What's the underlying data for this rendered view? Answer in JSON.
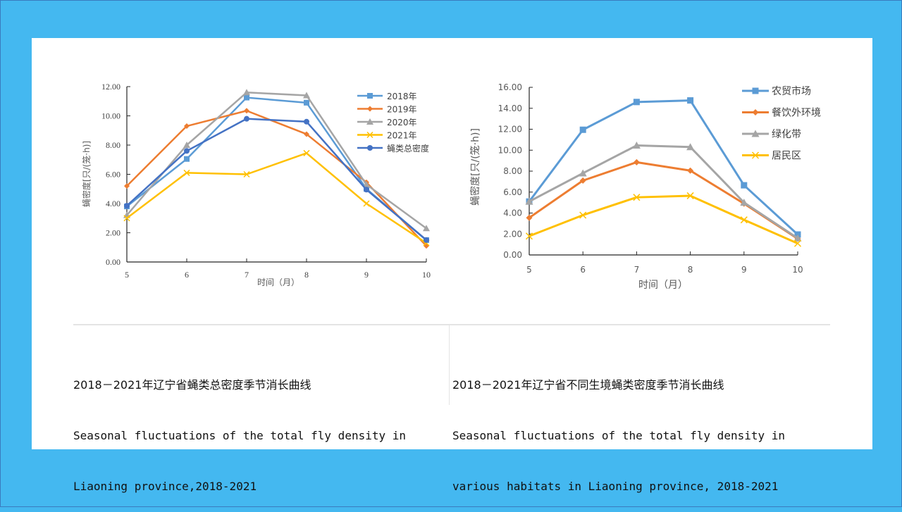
{
  "slide": {
    "background_color": "#44b8f0",
    "panel_color": "#ffffff"
  },
  "captions": [
    {
      "zh": "2018－2021年辽宁省蝇类总密度季节消长曲线",
      "en_line1": "Seasonal fluctuations of the total fly density in",
      "en_line2": "Liaoning province,2018-2021"
    },
    {
      "zh": "2018－2021年辽宁省不同生境蝇类密度季节消长曲线",
      "en_line1": "Seasonal fluctuations of the total fly density in",
      "en_line2": "various habitats in Liaoning province, 2018-2021"
    }
  ],
  "chart_data": [
    {
      "type": "line",
      "title": "",
      "xlabel": "时间（月）",
      "ylabel": "蝇密度[只/(笼·h)]",
      "x": [
        5,
        6,
        7,
        8,
        9,
        10
      ],
      "x_tick_labels": [
        "5",
        "6",
        "7",
        "8",
        "9",
        "10"
      ],
      "ylim": [
        0,
        12
      ],
      "y_ticks": [
        0,
        2,
        4,
        6,
        8,
        10,
        12
      ],
      "y_tick_labels": [
        "0.00",
        "2.00",
        "4.00",
        "6.00",
        "8.00",
        "10.00",
        "12.00"
      ],
      "grid": false,
      "legend_position": "top-right",
      "series": [
        {
          "name": "2018年",
          "color": "#5b9bd5",
          "marker": "square",
          "values": [
            3.8,
            7.05,
            11.25,
            10.9,
            5.0,
            1.5
          ]
        },
        {
          "name": "2019年",
          "color": "#ed7d31",
          "marker": "diamond",
          "values": [
            5.2,
            9.3,
            10.35,
            8.75,
            5.45,
            1.1
          ]
        },
        {
          "name": "2020年",
          "color": "#a5a5a5",
          "marker": "triangle",
          "values": [
            3.2,
            8.0,
            11.6,
            11.4,
            5.3,
            2.3
          ]
        },
        {
          "name": "2021年",
          "color": "#ffc000",
          "marker": "x",
          "values": [
            3.0,
            6.1,
            6.0,
            7.45,
            4.0,
            1.3
          ]
        },
        {
          "name": "蝇类总密度",
          "color": "#4472c4",
          "marker": "circle",
          "values": [
            3.85,
            7.6,
            9.8,
            9.6,
            4.95,
            1.5
          ]
        }
      ]
    },
    {
      "type": "line",
      "title": "",
      "xlabel": "时间（月）",
      "ylabel": "蝇密度[只/(笼·h)]",
      "x": [
        5,
        6,
        7,
        8,
        9,
        10
      ],
      "x_tick_labels": [
        "5",
        "6",
        "7",
        "8",
        "9",
        "10"
      ],
      "ylim": [
        0,
        16
      ],
      "y_ticks": [
        0,
        2,
        4,
        6,
        8,
        10,
        12,
        14,
        16
      ],
      "y_tick_labels": [
        "0.00",
        "2.00",
        "4.00",
        "6.00",
        "8.00",
        "10.00",
        "12.00",
        "14.00",
        "16.00"
      ],
      "grid": false,
      "legend_position": "top-right",
      "series": [
        {
          "name": "农贸市场",
          "color": "#5b9bd5",
          "marker": "square",
          "values": [
            5.1,
            11.95,
            14.6,
            14.75,
            6.65,
            1.95
          ]
        },
        {
          "name": "餐饮外环境",
          "color": "#ed7d31",
          "marker": "diamond",
          "values": [
            3.55,
            7.1,
            8.85,
            8.05,
            4.9,
            1.55
          ]
        },
        {
          "name": "绿化带",
          "color": "#a5a5a5",
          "marker": "triangle",
          "values": [
            5.1,
            7.8,
            10.45,
            10.3,
            5.0,
            1.6
          ]
        },
        {
          "name": "居民区",
          "color": "#ffc000",
          "marker": "x",
          "values": [
            1.8,
            3.8,
            5.5,
            5.65,
            3.35,
            1.1
          ]
        }
      ]
    }
  ]
}
